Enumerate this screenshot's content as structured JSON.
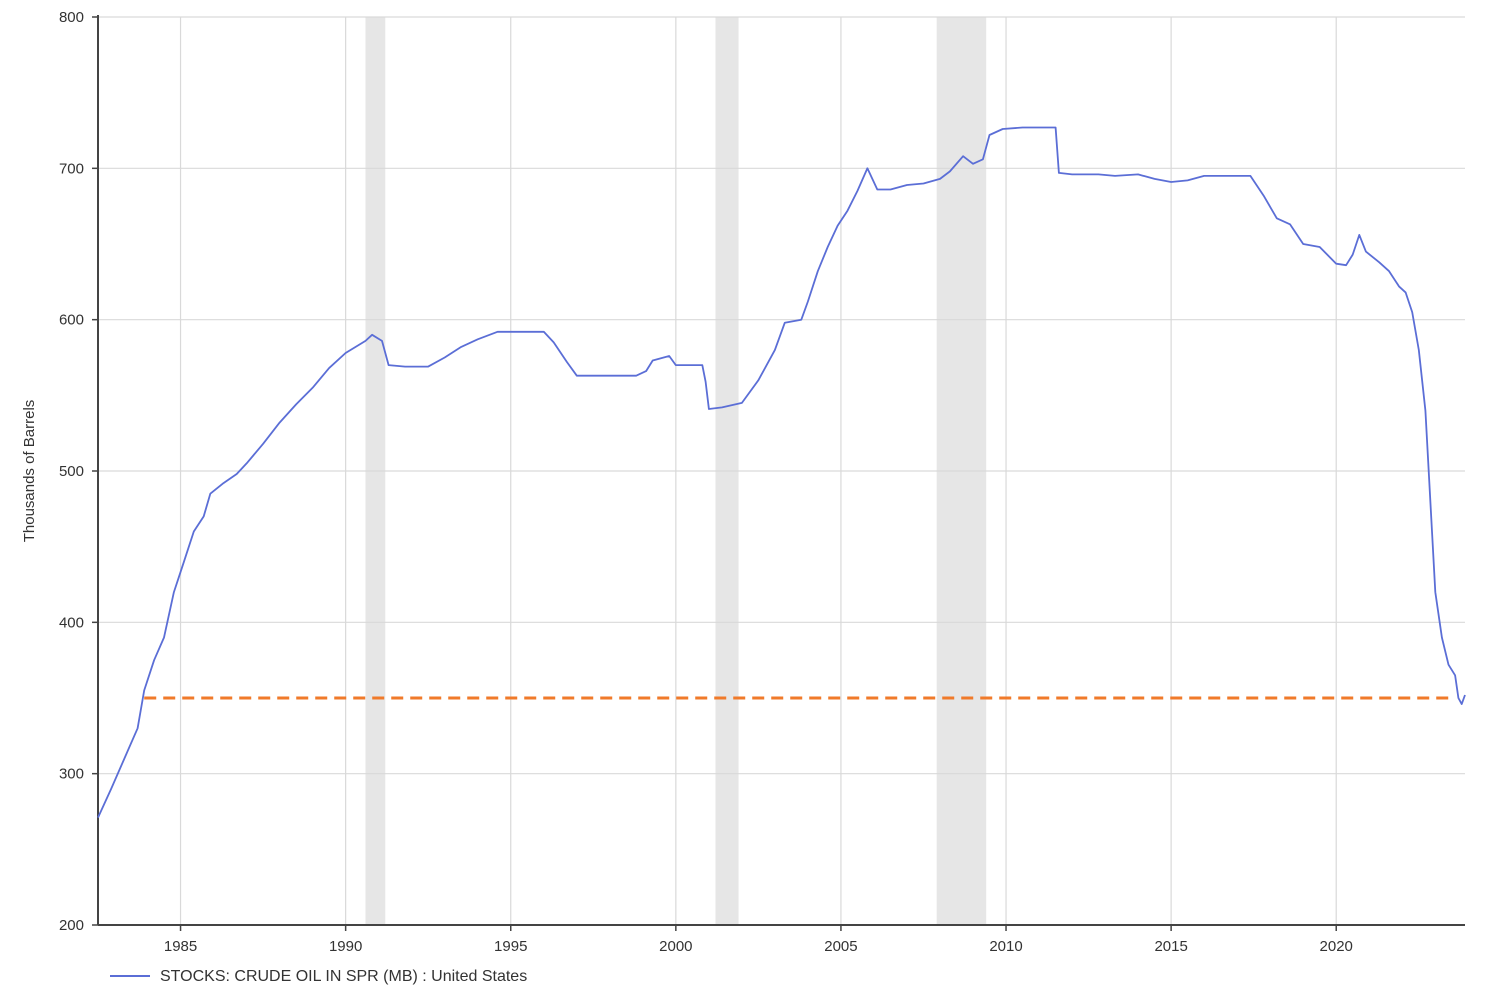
{
  "chart_data": {
    "type": "line",
    "title": "",
    "xlabel": "",
    "ylabel": "Thousands of Barrels",
    "xlim": [
      1982.5,
      2023.9
    ],
    "ylim": [
      200,
      800
    ],
    "y_ticks": [
      200,
      300,
      400,
      500,
      600,
      700,
      800
    ],
    "x_ticks": [
      1985,
      1990,
      1995,
      2000,
      2005,
      2010,
      2015,
      2020
    ],
    "grid": true,
    "legend_position": "bottom-left",
    "colors": {
      "series": "#5b6ed6",
      "reference": "#f07a2a",
      "recession": "#e6e6e6",
      "grid": "#d9d9d9",
      "axis": "#444444"
    },
    "recession_bands": [
      [
        1990.6,
        1991.2
      ],
      [
        2001.2,
        2001.9
      ],
      [
        2007.9,
        2009.4
      ]
    ],
    "reference_line": {
      "y": 350,
      "x_start": 1983.9,
      "x_end": 2023.5,
      "style": "dashed"
    },
    "series": [
      {
        "name": "STOCKS: CRUDE OIL IN SPR (MB) : United States",
        "points": [
          [
            1982.5,
            271
          ],
          [
            1982.9,
            290
          ],
          [
            1983.3,
            310
          ],
          [
            1983.7,
            330
          ],
          [
            1983.9,
            355
          ],
          [
            1984.2,
            375
          ],
          [
            1984.5,
            390
          ],
          [
            1984.8,
            420
          ],
          [
            1985.1,
            440
          ],
          [
            1985.4,
            460
          ],
          [
            1985.7,
            470
          ],
          [
            1985.9,
            485
          ],
          [
            1986.3,
            492
          ],
          [
            1986.7,
            498
          ],
          [
            1987.0,
            505
          ],
          [
            1987.5,
            518
          ],
          [
            1988.0,
            532
          ],
          [
            1988.5,
            544
          ],
          [
            1989.0,
            555
          ],
          [
            1989.5,
            568
          ],
          [
            1990.0,
            578
          ],
          [
            1990.6,
            586
          ],
          [
            1990.8,
            590
          ],
          [
            1991.1,
            586
          ],
          [
            1991.3,
            570
          ],
          [
            1991.8,
            569
          ],
          [
            1992.5,
            569
          ],
          [
            1993.0,
            575
          ],
          [
            1993.5,
            582
          ],
          [
            1994.0,
            587
          ],
          [
            1994.6,
            592
          ],
          [
            1995.2,
            592
          ],
          [
            1996.0,
            592
          ],
          [
            1996.3,
            585
          ],
          [
            1996.7,
            572
          ],
          [
            1997.0,
            563
          ],
          [
            1997.5,
            563
          ],
          [
            1998.0,
            563
          ],
          [
            1998.8,
            563
          ],
          [
            1999.1,
            566
          ],
          [
            1999.3,
            573
          ],
          [
            1999.8,
            576
          ],
          [
            2000.0,
            570
          ],
          [
            2000.5,
            570
          ],
          [
            2000.8,
            570
          ],
          [
            2000.9,
            559
          ],
          [
            2001.0,
            541
          ],
          [
            2001.4,
            542
          ],
          [
            2002.0,
            545
          ],
          [
            2002.5,
            560
          ],
          [
            2003.0,
            580
          ],
          [
            2003.3,
            598
          ],
          [
            2003.8,
            600
          ],
          [
            2004.0,
            612
          ],
          [
            2004.3,
            632
          ],
          [
            2004.6,
            648
          ],
          [
            2004.9,
            662
          ],
          [
            2005.2,
            672
          ],
          [
            2005.5,
            685
          ],
          [
            2005.8,
            700
          ],
          [
            2006.1,
            686
          ],
          [
            2006.5,
            686
          ],
          [
            2007.0,
            689
          ],
          [
            2007.5,
            690
          ],
          [
            2008.0,
            693
          ],
          [
            2008.3,
            698
          ],
          [
            2008.7,
            708
          ],
          [
            2009.0,
            703
          ],
          [
            2009.3,
            706
          ],
          [
            2009.5,
            722
          ],
          [
            2009.9,
            726
          ],
          [
            2010.5,
            727
          ],
          [
            2011.2,
            727
          ],
          [
            2011.5,
            727
          ],
          [
            2011.6,
            697
          ],
          [
            2012.0,
            696
          ],
          [
            2012.8,
            696
          ],
          [
            2013.3,
            695
          ],
          [
            2014.0,
            696
          ],
          [
            2014.5,
            693
          ],
          [
            2015.0,
            691
          ],
          [
            2015.5,
            692
          ],
          [
            2016.0,
            695
          ],
          [
            2016.8,
            695
          ],
          [
            2017.4,
            695
          ],
          [
            2017.8,
            682
          ],
          [
            2018.2,
            667
          ],
          [
            2018.6,
            663
          ],
          [
            2019.0,
            650
          ],
          [
            2019.5,
            648
          ],
          [
            2020.0,
            637
          ],
          [
            2020.3,
            636
          ],
          [
            2020.5,
            643
          ],
          [
            2020.7,
            656
          ],
          [
            2020.9,
            645
          ],
          [
            2021.3,
            638
          ],
          [
            2021.6,
            632
          ],
          [
            2021.9,
            622
          ],
          [
            2022.1,
            618
          ],
          [
            2022.3,
            605
          ],
          [
            2022.5,
            580
          ],
          [
            2022.7,
            540
          ],
          [
            2022.9,
            460
          ],
          [
            2023.0,
            420
          ],
          [
            2023.2,
            390
          ],
          [
            2023.4,
            372
          ],
          [
            2023.6,
            365
          ],
          [
            2023.7,
            350
          ],
          [
            2023.8,
            346
          ],
          [
            2023.9,
            352
          ]
        ]
      }
    ]
  }
}
